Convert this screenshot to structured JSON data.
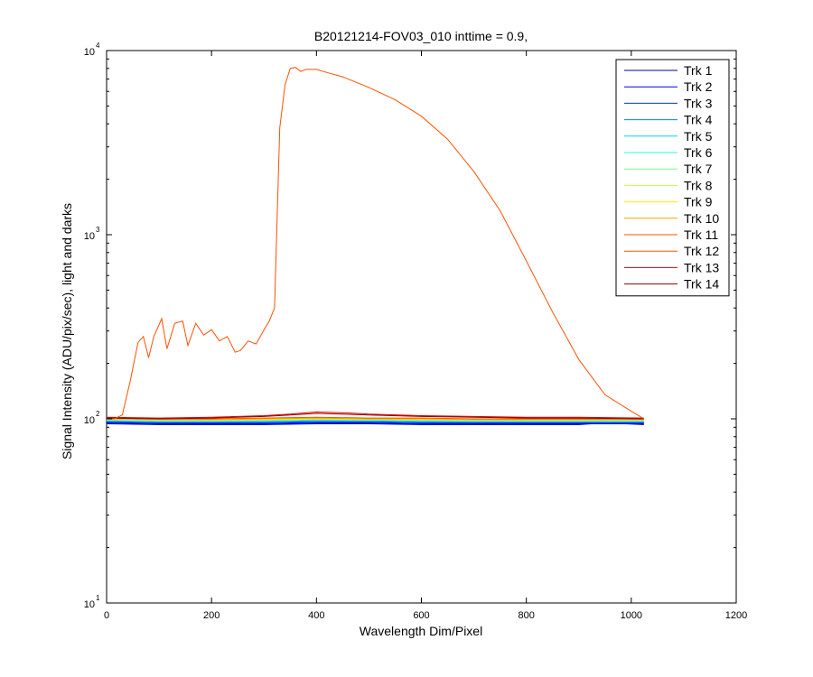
{
  "chart_data": {
    "type": "line",
    "title": "B20121214-FOV03_010 inttime = 0.9,",
    "xlabel": "Wavelength Dim/Pixel",
    "ylabel": "Signal Intensity (ADU/pix/sec), light and darks",
    "xlim": [
      0,
      1200
    ],
    "ylim": [
      10,
      10000
    ],
    "y_scale": "log",
    "grid": false,
    "legend_position": "top-right",
    "x_ticks": [
      "0",
      "200",
      "400",
      "600",
      "800",
      "1000",
      "1200"
    ],
    "y_ticks": [
      {
        "base": "10",
        "exp": "1"
      },
      {
        "base": "10",
        "exp": "2"
      },
      {
        "base": "10",
        "exp": "3"
      },
      {
        "base": "10",
        "exp": "4"
      }
    ],
    "series": [
      {
        "name": "Trk 1",
        "color": "#00008f",
        "x": [
          0,
          100,
          200,
          300,
          400,
          500,
          600,
          700,
          800,
          900,
          950,
          1024
        ],
        "y": [
          94,
          93,
          93,
          93,
          94,
          94,
          93,
          93,
          93,
          93,
          95,
          93
        ]
      },
      {
        "name": "Trk 2",
        "color": "#0000df",
        "x": [
          0,
          100,
          200,
          300,
          400,
          500,
          600,
          700,
          800,
          900,
          1024
        ],
        "y": [
          95,
          94,
          94,
          94,
          95,
          95,
          94,
          94,
          94,
          94,
          94
        ]
      },
      {
        "name": "Trk 3",
        "color": "#0030ff",
        "x": [
          0,
          100,
          200,
          300,
          400,
          500,
          600,
          700,
          800,
          900,
          1024
        ],
        "y": [
          96,
          95,
          95,
          95,
          96,
          96,
          95,
          95,
          95,
          95,
          95
        ]
      },
      {
        "name": "Trk 4",
        "color": "#0080ff",
        "x": [
          0,
          100,
          200,
          300,
          400,
          500,
          600,
          700,
          800,
          900,
          1024
        ],
        "y": [
          97,
          96,
          96,
          96,
          97,
          97,
          96,
          96,
          96,
          96,
          96
        ]
      },
      {
        "name": "Trk 5",
        "color": "#00d0ff",
        "x": [
          0,
          100,
          200,
          300,
          400,
          500,
          600,
          700,
          800,
          900,
          1024
        ],
        "y": [
          98,
          97,
          97,
          97,
          98,
          98,
          97,
          97,
          97,
          97,
          97
        ]
      },
      {
        "name": "Trk 6",
        "color": "#20ffdf",
        "x": [
          0,
          100,
          200,
          300,
          400,
          500,
          600,
          700,
          800,
          900,
          1024
        ],
        "y": [
          98,
          97,
          97,
          98,
          99,
          98,
          98,
          97,
          97,
          97,
          97
        ]
      },
      {
        "name": "Trk 7",
        "color": "#70ff8f",
        "x": [
          0,
          100,
          200,
          300,
          400,
          500,
          600,
          700,
          800,
          900,
          1024
        ],
        "y": [
          99,
          98,
          98,
          98,
          99,
          99,
          98,
          98,
          98,
          98,
          98
        ]
      },
      {
        "name": "Trk 8",
        "color": "#bfff40",
        "x": [
          0,
          100,
          200,
          300,
          400,
          500,
          600,
          700,
          800,
          900,
          1024
        ],
        "y": [
          99,
          98,
          98,
          99,
          100,
          99,
          99,
          98,
          98,
          98,
          98
        ]
      },
      {
        "name": "Trk 9",
        "color": "#ffef00",
        "x": [
          0,
          100,
          200,
          300,
          400,
          500,
          600,
          700,
          800,
          900,
          1024
        ],
        "y": [
          100,
          99,
          99,
          99,
          100,
          100,
          99,
          99,
          99,
          99,
          99
        ]
      },
      {
        "name": "Trk 10",
        "color": "#ff9f00",
        "x": [
          0,
          100,
          200,
          300,
          400,
          500,
          600,
          700,
          800,
          900,
          1024
        ],
        "y": [
          100,
          99,
          99,
          100,
          101,
          100,
          100,
          99,
          99,
          99,
          99
        ]
      },
      {
        "name": "Trk 11",
        "color": "#ff5000",
        "x": [
          0,
          100,
          200,
          300,
          400,
          500,
          600,
          700,
          800,
          900,
          1024
        ],
        "y": [
          101,
          100,
          100,
          101,
          102,
          101,
          101,
          100,
          100,
          100,
          100
        ]
      },
      {
        "name": "Trk 12",
        "color": "#ff5000",
        "x": [
          0,
          15,
          30,
          45,
          60,
          70,
          80,
          90,
          105,
          115,
          130,
          145,
          155,
          170,
          185,
          200,
          215,
          230,
          245,
          255,
          270,
          285,
          300,
          310,
          320,
          330,
          340,
          350,
          360,
          370,
          380,
          400,
          420,
          450,
          500,
          550,
          600,
          650,
          700,
          750,
          800,
          850,
          900,
          950,
          1000,
          1024
        ],
        "y": [
          100,
          100,
          105,
          160,
          260,
          280,
          215,
          280,
          350,
          240,
          330,
          340,
          250,
          330,
          285,
          305,
          265,
          280,
          230,
          235,
          265,
          255,
          305,
          340,
          400,
          3800,
          6500,
          8000,
          8100,
          7700,
          7900,
          7900,
          7600,
          7200,
          6300,
          5400,
          4400,
          3300,
          2200,
          1350,
          720,
          380,
          210,
          135,
          110,
          100
        ]
      },
      {
        "name": "Trk 13",
        "color": "#df0000",
        "x": [
          0,
          100,
          200,
          300,
          350,
          400,
          450,
          500,
          600,
          700,
          800,
          900,
          1024
        ],
        "y": [
          102,
          101,
          102,
          104,
          106,
          109,
          108,
          106,
          104,
          103,
          102,
          102,
          101
        ]
      },
      {
        "name": "Trk 14",
        "color": "#8f0000",
        "x": [
          0,
          100,
          200,
          300,
          350,
          400,
          450,
          500,
          600,
          700,
          800,
          900,
          1024
        ],
        "y": [
          101,
          100,
          101,
          103,
          105,
          107,
          106,
          105,
          103,
          102,
          101,
          101,
          100
        ]
      }
    ]
  }
}
